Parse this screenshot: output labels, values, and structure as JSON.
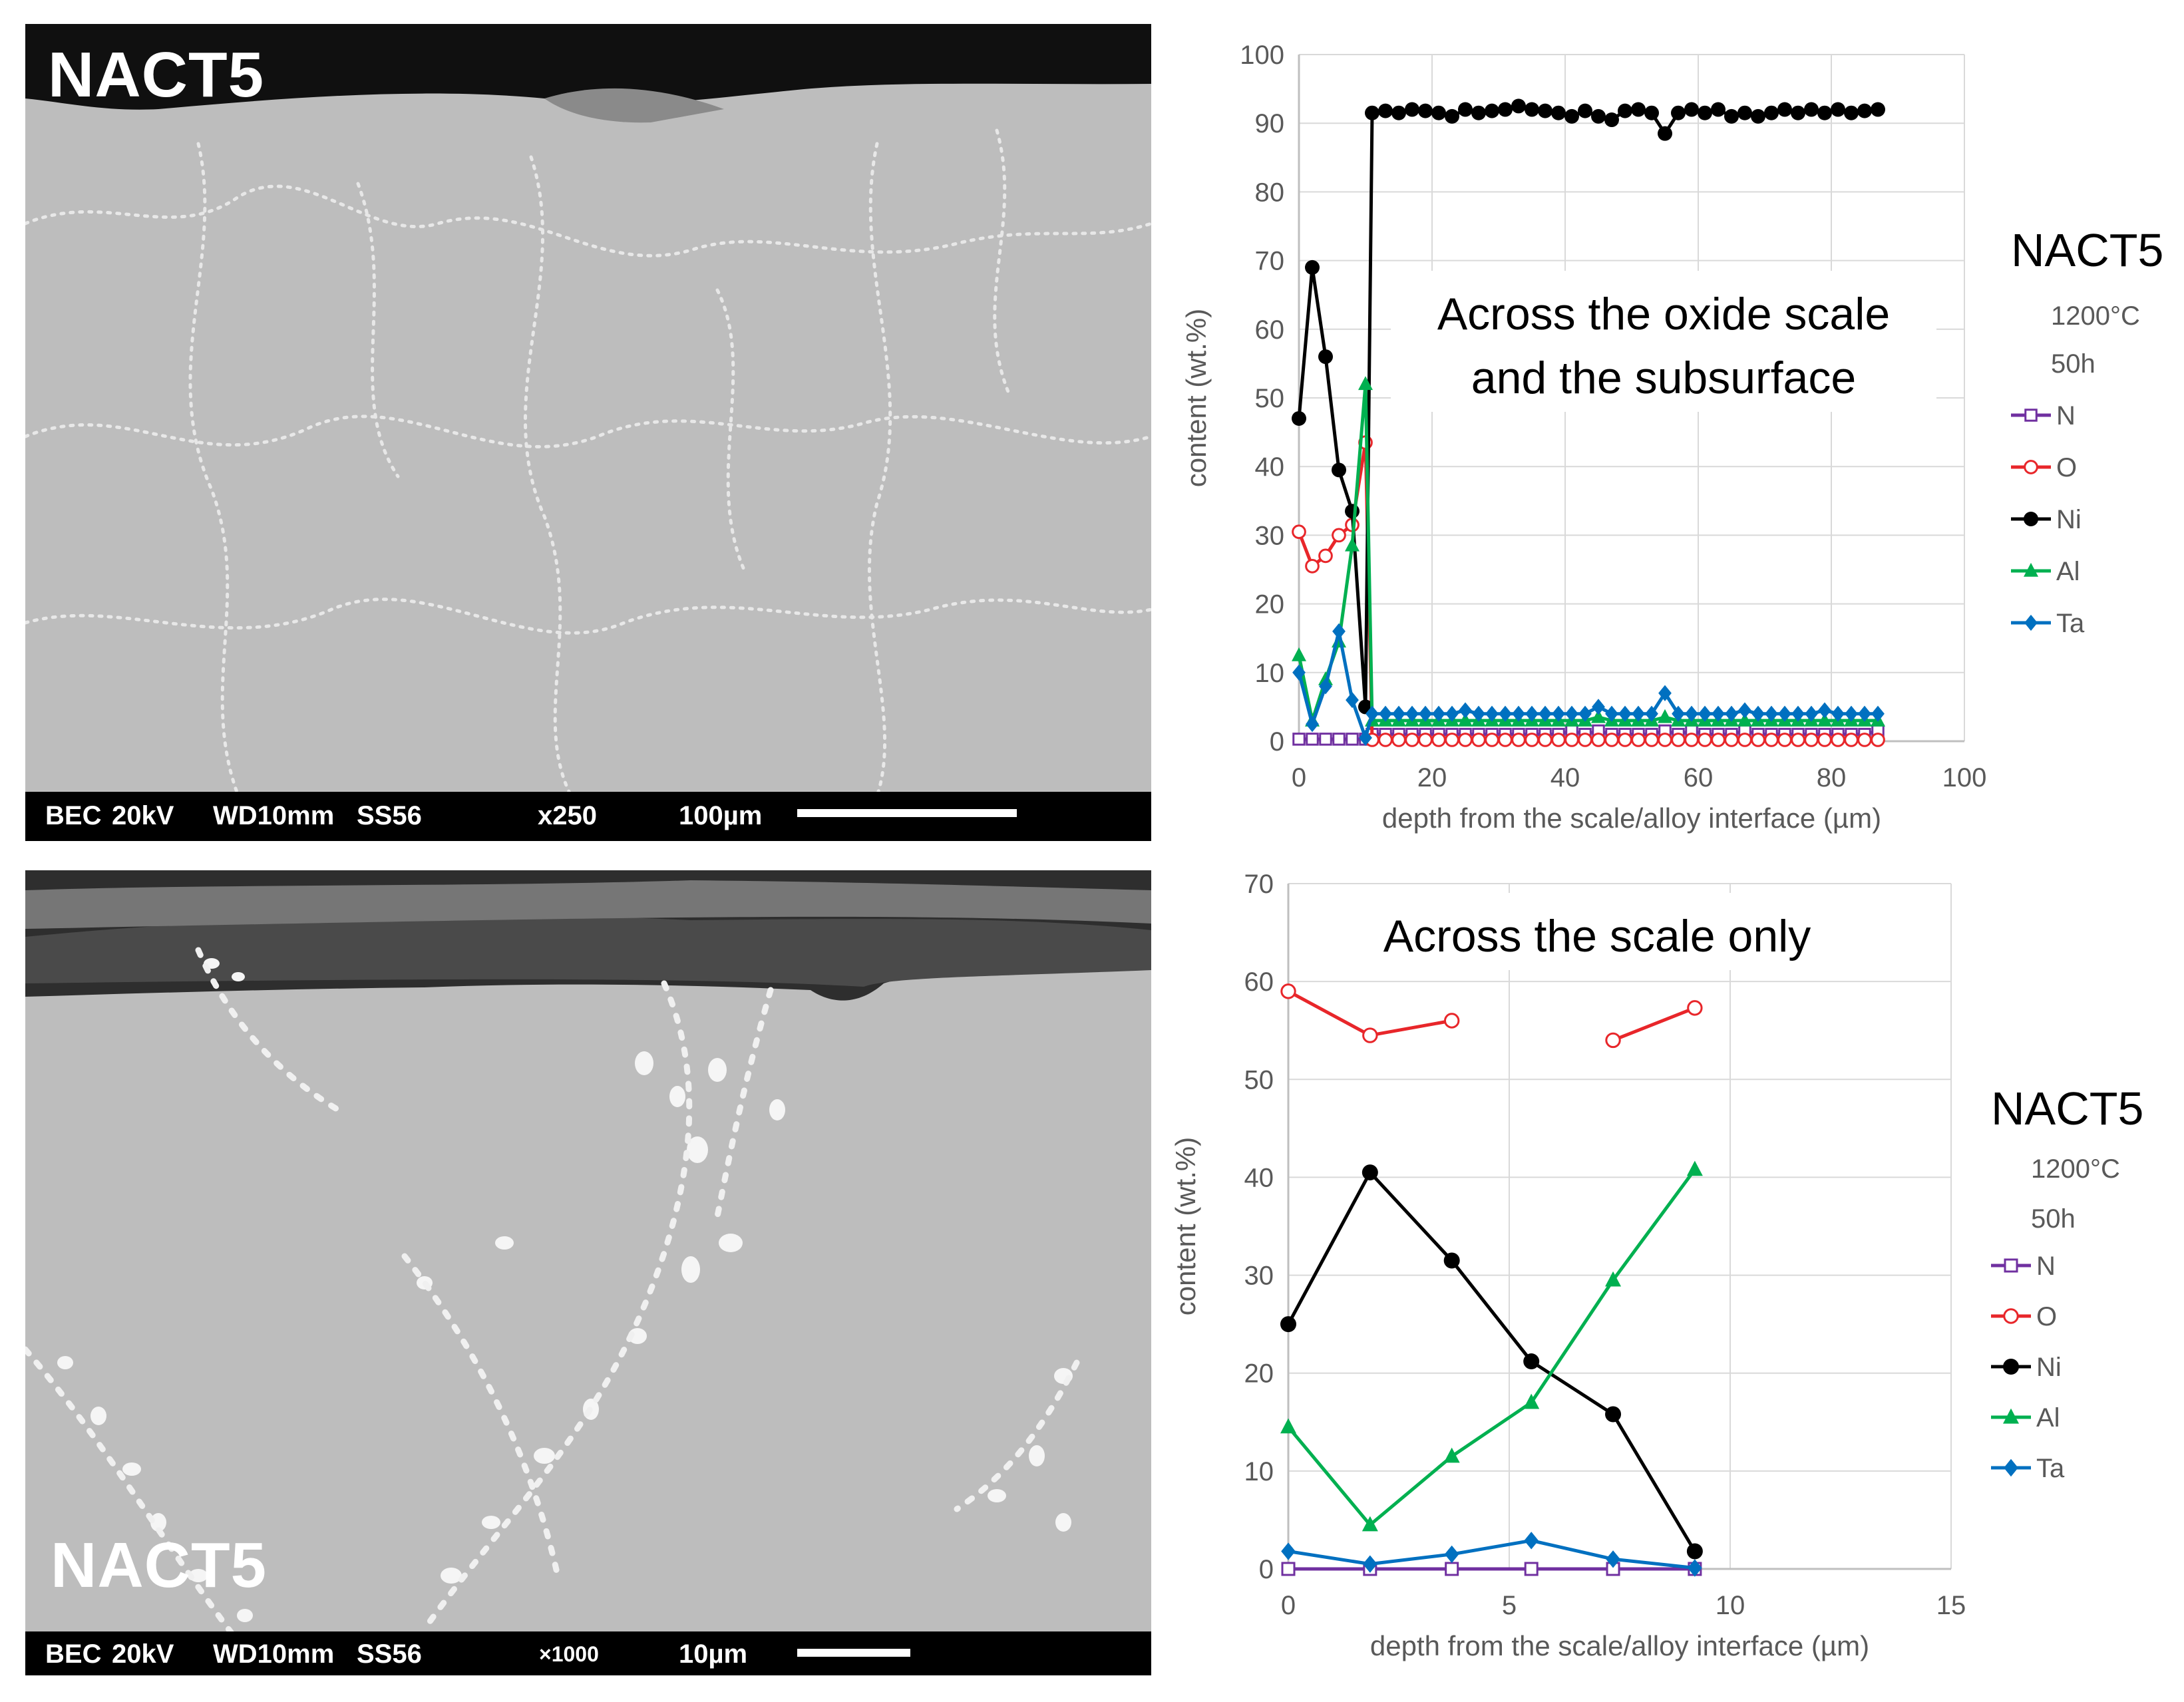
{
  "sem_images": [
    {
      "label": "NACT5",
      "infobar": {
        "mode": "BEC",
        "voltage": "20kV",
        "wd": "WD10mm",
        "sample": "SS56",
        "magnification": "x250",
        "scale": "100µm"
      }
    },
    {
      "label": "NACT5",
      "infobar": {
        "mode": "BEC",
        "voltage": "20kV",
        "wd": "WD10mm",
        "sample": "SS56",
        "magnification": "×1000",
        "scale": "10µm"
      }
    }
  ],
  "colors": {
    "N": "#7030a0",
    "O": "#e8262a",
    "Ni": "#000000",
    "Al": "#00b050",
    "Ta": "#0070c0",
    "grid": "#d9d9d9",
    "axis_text": "#595959"
  },
  "chart_data": [
    {
      "type": "line",
      "annotation": [
        "Across the oxide scale",
        "and the subsurface"
      ],
      "xlabel": "depth from the scale/alloy interface (µm)",
      "ylabel": "content (wt.%)",
      "xlim": [
        0,
        100
      ],
      "ylim": [
        0,
        100
      ],
      "xticks": [
        0,
        20,
        40,
        60,
        80,
        100
      ],
      "yticks": [
        0,
        10,
        20,
        30,
        40,
        50,
        60,
        70,
        80,
        90,
        100
      ],
      "grid": true,
      "legend": {
        "title": "NACT5",
        "conditions": [
          "1200°C",
          "50h"
        ],
        "position": "right"
      },
      "x": [
        0,
        2,
        4,
        6,
        8,
        10
      ],
      "x_tail": [
        11,
        13,
        15,
        17,
        19,
        21,
        23,
        25,
        27,
        29,
        31,
        33,
        35,
        37,
        39,
        41,
        43,
        45,
        47,
        49,
        51,
        53,
        55,
        57,
        59,
        61,
        63,
        65,
        67,
        69,
        71,
        73,
        75,
        77,
        79,
        81,
        83,
        85,
        87
      ],
      "series": [
        {
          "name": "N",
          "marker": "square-open",
          "values": [
            0.3,
            0.3,
            0.3,
            0.3,
            0.3,
            0.3
          ],
          "tail": [
            1,
            1,
            1,
            1,
            1,
            1,
            1,
            1,
            1,
            1,
            1,
            1,
            1,
            1,
            1,
            1.5,
            1,
            1.5,
            1,
            1,
            1,
            1,
            1.5,
            1,
            1.5,
            1,
            1,
            1,
            1.5,
            1,
            1,
            1,
            1,
            1,
            1,
            1,
            1,
            1,
            1.5
          ]
        },
        {
          "name": "O",
          "marker": "circle-open",
          "values": [
            30.5,
            25.5,
            27,
            30,
            31.5,
            43.5
          ],
          "tail": [
            0.2,
            0.2,
            0.2,
            0.2,
            0.2,
            0.2,
            0.2,
            0.2,
            0.2,
            0.2,
            0.2,
            0.2,
            0.2,
            0.2,
            0.2,
            0.2,
            0.2,
            0.2,
            0.2,
            0.2,
            0.2,
            0.2,
            0.2,
            0.2,
            0.2,
            0.2,
            0.2,
            0.2,
            0.2,
            0.2,
            0.2,
            0.2,
            0.2,
            0.2,
            0.2,
            0.2,
            0.2,
            0.2,
            0.2
          ]
        },
        {
          "name": "Ni",
          "marker": "circle-filled",
          "values": [
            47,
            69,
            56,
            39.5,
            33.5,
            5
          ],
          "tail": [
            91.5,
            91.8,
            91.5,
            92,
            91.8,
            91.5,
            91,
            92,
            91.5,
            91.8,
            92,
            92.5,
            92,
            91.8,
            91.5,
            91,
            91.8,
            91,
            90.5,
            91.8,
            92,
            91.5,
            88.5,
            91.5,
            92,
            91.5,
            92,
            91,
            91.5,
            91,
            91.5,
            92,
            91.5,
            92,
            91.5,
            92,
            91.5,
            91.8,
            92
          ]
        },
        {
          "name": "Al",
          "marker": "triangle-filled",
          "values": [
            12.5,
            3,
            9,
            14.5,
            28.5,
            52
          ],
          "tail": [
            3,
            3,
            3,
            3,
            3,
            3,
            3,
            3,
            3,
            3,
            3,
            3,
            3,
            3,
            3,
            3,
            3,
            3.5,
            3,
            3,
            3,
            3,
            3.5,
            3,
            3,
            3,
            3,
            3,
            3,
            3,
            3,
            3,
            3,
            3,
            3,
            3,
            3,
            3,
            3
          ]
        },
        {
          "name": "Ta",
          "marker": "diamond-filled",
          "values": [
            10,
            2.5,
            8,
            16,
            6,
            0.5
          ],
          "tail": [
            4,
            4,
            4,
            4,
            4,
            4,
            4,
            4.5,
            4,
            4,
            4,
            4,
            4,
            4,
            4,
            4,
            4,
            5,
            4,
            4,
            4,
            4,
            7,
            4,
            4,
            4,
            4,
            4,
            4.5,
            4,
            4,
            4,
            4,
            4,
            4.5,
            4,
            4,
            4,
            4
          ]
        }
      ]
    },
    {
      "type": "line",
      "annotation": [
        "Across the scale only"
      ],
      "xlabel": "depth from the scale/alloy interface (µm)",
      "ylabel": "content (wt.%)",
      "xlim": [
        0,
        15
      ],
      "ylim": [
        0,
        70
      ],
      "xticks": [
        0,
        5,
        10,
        15
      ],
      "yticks": [
        0,
        10,
        20,
        30,
        40,
        50,
        60,
        70
      ],
      "grid": true,
      "legend": {
        "title": "NACT5",
        "conditions": [
          "1200°C",
          "50h"
        ],
        "position": "right"
      },
      "x": [
        0,
        1.85,
        3.7,
        5.5,
        7.35,
        9.2
      ],
      "series": [
        {
          "name": "N",
          "marker": "square-open",
          "values": [
            0,
            0,
            0,
            0,
            0,
            0
          ]
        },
        {
          "name": "O",
          "marker": "circle-open",
          "values": [
            59,
            54.5,
            56,
            null,
            54,
            57.3
          ]
        },
        {
          "name": "Ni",
          "marker": "circle-filled",
          "values": [
            25,
            40.5,
            31.5,
            21.2,
            15.8,
            1.8
          ]
        },
        {
          "name": "Al",
          "marker": "triangle-filled",
          "values": [
            14.5,
            4.5,
            11.5,
            17,
            29.5,
            40.8
          ]
        },
        {
          "name": "Ta",
          "marker": "diamond-filled",
          "values": [
            1.8,
            0.5,
            1.5,
            2.9,
            1,
            0.1
          ]
        }
      ]
    }
  ]
}
